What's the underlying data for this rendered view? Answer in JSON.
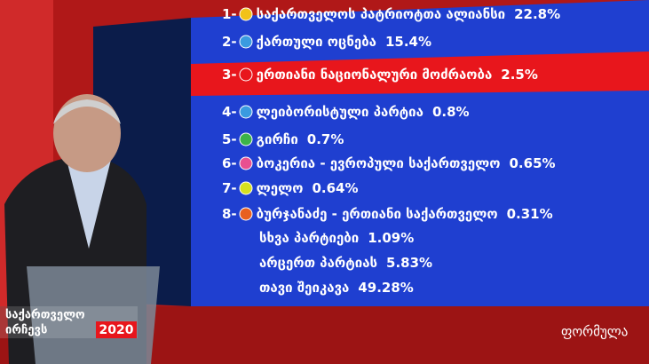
{
  "results": [
    {
      "number": "1-",
      "label": "საქართველოს პატრიოტთა ალიანსი",
      "value": "22.8%"
    },
    {
      "number": "2-",
      "label": "ქართული ოცნება",
      "value": "15.4%"
    },
    {
      "number": "3-",
      "label": "ერთიანი ნაციონალური მოძრაობა",
      "value": "2.5%"
    },
    {
      "number": "4-",
      "label": "ლეიბორისტული პარტია",
      "value": "0.8%"
    },
    {
      "number": "5-",
      "label": "გირჩი",
      "value": "0.7%"
    },
    {
      "number": "6-",
      "label": "ბოკერია - ევროპული საქართველო",
      "value": "0.65%"
    },
    {
      "number": "7-",
      "label": "ლელო",
      "value": "0.64%"
    },
    {
      "number": "8-",
      "label": "ბურჯანაძე - ერთიანი საქართველო",
      "value": "0.31%"
    }
  ],
  "others": [
    {
      "label": "სხვა პარტიები",
      "value": "1.09%"
    },
    {
      "label": "არცერთ პარტიას",
      "value": "5.83%"
    },
    {
      "label": "თავი შეიკავა",
      "value": "49.28%"
    }
  ],
  "branding": {
    "show_line1": "საქართველო",
    "show_line2": "ირჩევს",
    "show_year": "2020",
    "channel": "ფორმულა"
  }
}
